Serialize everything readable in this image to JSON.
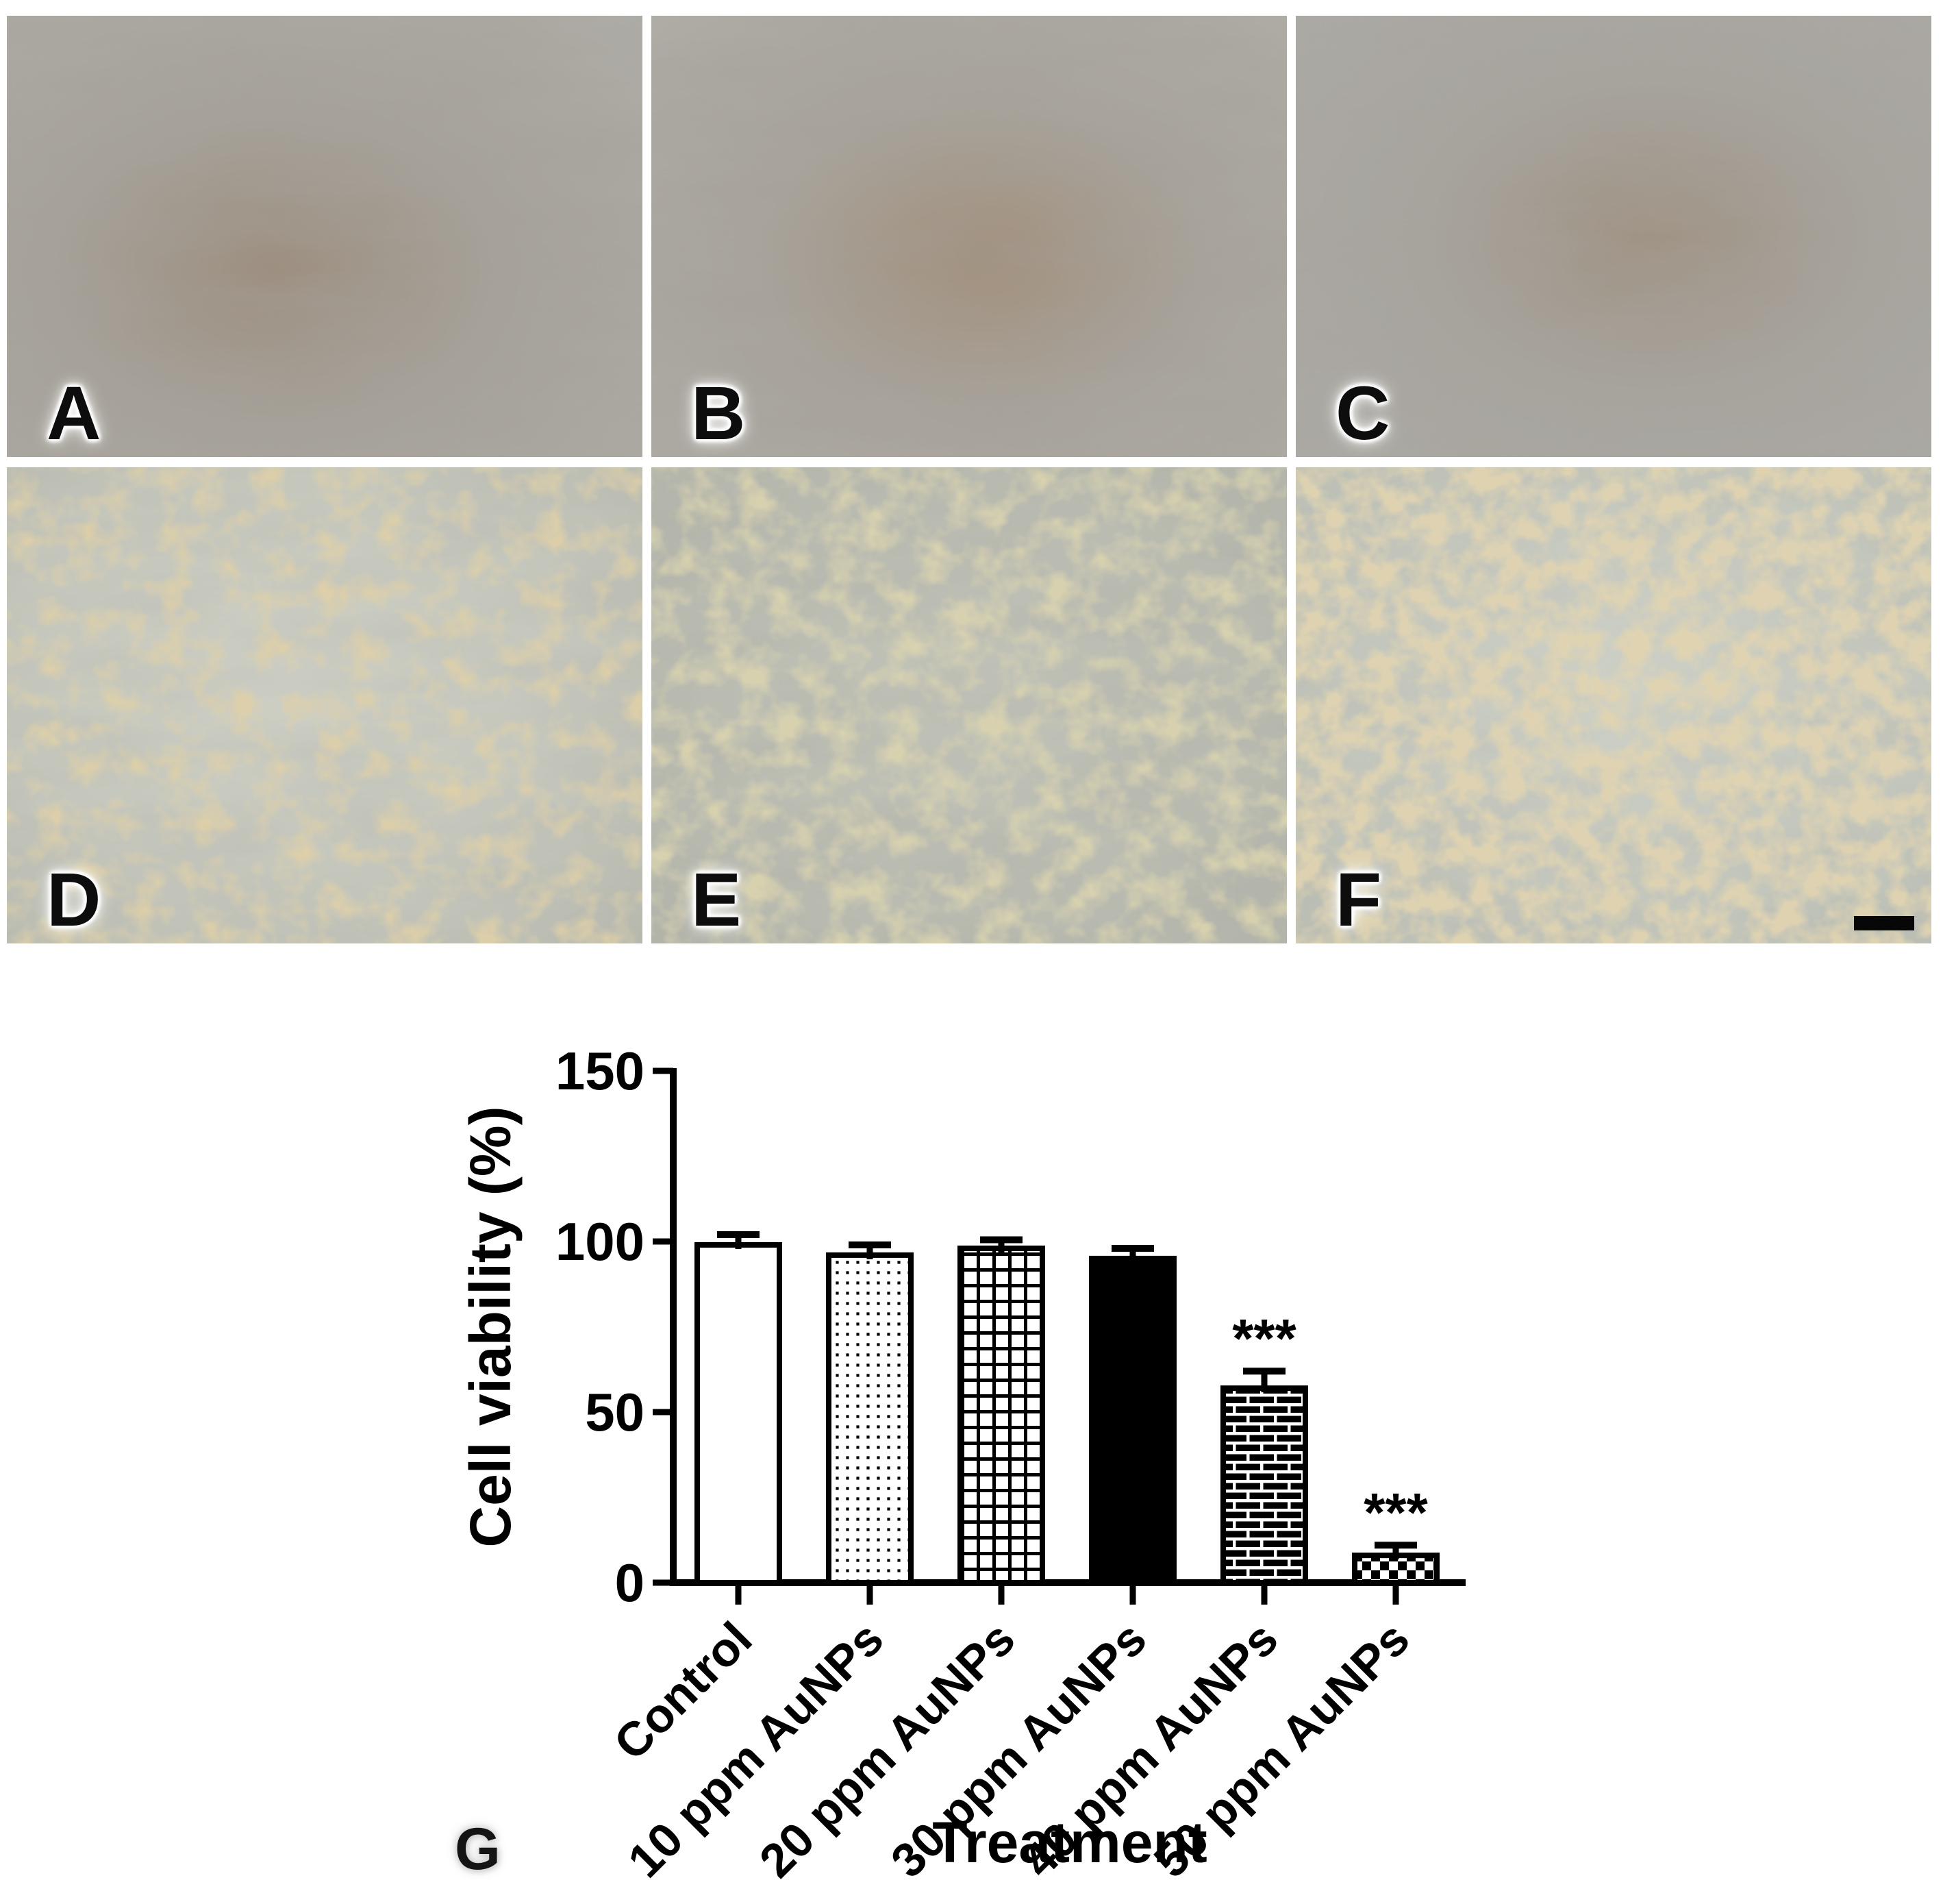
{
  "panels": [
    {
      "label": "A"
    },
    {
      "label": "B"
    },
    {
      "label": "C"
    },
    {
      "label": "D"
    },
    {
      "label": "E"
    },
    {
      "label": "F"
    }
  ],
  "subfigure_label": "G",
  "chart_data": {
    "type": "bar",
    "title": "",
    "categories": [
      "Control",
      "10 ppm AuNPs",
      "20 ppm AuNPs",
      "30 ppm AuNPs",
      "40 ppm AuNPs",
      "50 ppm AuNPs"
    ],
    "values": [
      99,
      96,
      98,
      95,
      57,
      8
    ],
    "errors": [
      3,
      3,
      2.5,
      3,
      5,
      3
    ],
    "significance": [
      "",
      "",
      "",
      "",
      "***",
      "***"
    ],
    "bar_patterns": [
      "solid-white",
      "dots",
      "grid",
      "solid-black",
      "bricks",
      "checker"
    ],
    "xlabel": "Treatment",
    "ylabel": "Cell viability (%)",
    "yticks": [
      0,
      50,
      100,
      150
    ],
    "ylim": [
      0,
      150
    ],
    "axis_color": "#000000",
    "bar_outline_color": "#000000",
    "background": "#ffffff",
    "grid": false,
    "legend_position": "none"
  }
}
